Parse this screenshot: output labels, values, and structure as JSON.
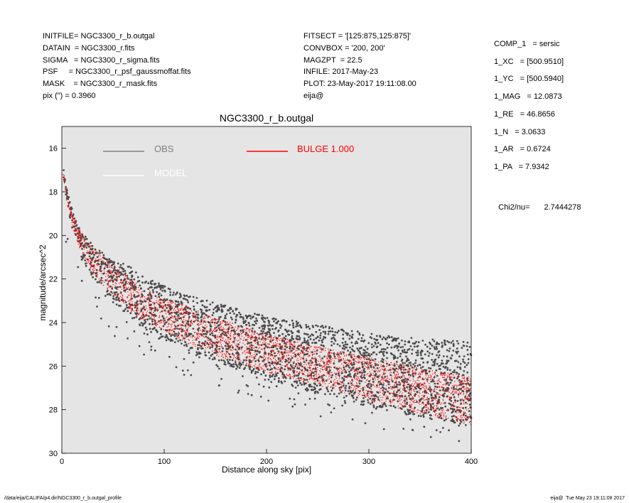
{
  "header_left": [
    {
      "key": "INITFILE=",
      "value": "NGC3300_r_b.outgal"
    },
    {
      "key": "DATAIN  =",
      "value": "NGC3300_r.fits"
    },
    {
      "key": "SIGMA   =",
      "value": "NGC3300_r_sigma.fits"
    },
    {
      "key": "PSF     =",
      "value": "NGC3300_r_psf_gaussmoffat.fits"
    },
    {
      "key": "MASK    =",
      "value": "NGC3300_r_mask.fits"
    },
    {
      "key": "pix (\") =",
      "value": "0.3960"
    }
  ],
  "header_mid": [
    {
      "key": "FITSECT =",
      "value": "'[125:875,125:875]'"
    },
    {
      "key": "CONVBOX =",
      "value": "'200, 200'"
    },
    {
      "key": "MAGZPT  =",
      "value": "22.5"
    },
    {
      "key": "INFILE:",
      "value": "2017-May-23"
    },
    {
      "key": "PLOT:",
      "value": "23-May-2017 19:11:08.00"
    },
    {
      "key": "eija@",
      "value": ""
    }
  ],
  "components": [
    {
      "key": "COMP_1",
      "value": "= sersic"
    },
    {
      "key": "1_XC",
      "value": "= [500.9510]"
    },
    {
      "key": "1_YC",
      "value": "= [500.5940]"
    },
    {
      "key": "1_MAG",
      "value": "= 12.0873"
    },
    {
      "key": "1_RE",
      "value": "= 46.8656"
    },
    {
      "key": "1_N",
      "value": "= 3.0633"
    },
    {
      "key": "1_AR",
      "value": "= 0.6724"
    },
    {
      "key": "1_PA",
      "value": "= 7.9342"
    }
  ],
  "chi2": {
    "label": "Chi2/nu=",
    "value": "2.7444278"
  },
  "footer": {
    "left": "/data/eija/CALIFA/p4.dir/NGC3300_r_b.outgal_profile",
    "right": "eija@  Tue May 23 19:11:08 2017"
  },
  "chart_data": {
    "type": "scatter",
    "title": "NGC3300_r_b.outgal",
    "xlabel": "Distance along sky [pix]",
    "ylabel": "magnitude/arcsec^2",
    "xlim": [
      0,
      400
    ],
    "ylim": [
      30,
      15
    ],
    "x_ticks": [
      0,
      100,
      200,
      300,
      400
    ],
    "y_ticks": [
      16,
      18,
      20,
      22,
      24,
      26,
      28,
      30
    ],
    "plot_background": "#e5e5e5",
    "legend": [
      {
        "name": "OBS",
        "color": "#808080"
      },
      {
        "name": "MODEL",
        "color": "#ffffff"
      },
      {
        "name": "BULGE  1.000",
        "color": "#ff0000"
      }
    ],
    "series": [
      {
        "name": "OBS",
        "color": "#4a4a4a",
        "x": [
          2,
          5,
          10,
          15,
          20,
          30,
          40,
          50,
          60,
          70,
          80,
          100,
          120,
          150,
          200,
          250,
          300,
          350,
          400
        ],
        "y": [
          17.2,
          18.2,
          19.2,
          19.9,
          20.4,
          21.0,
          21.5,
          21.9,
          22.2,
          22.5,
          22.9,
          23.4,
          23.8,
          24.3,
          25.0,
          25.6,
          26.1,
          26.5,
          26.9
        ],
        "spread_low": [
          0.2,
          0.3,
          0.5,
          0.6,
          0.7,
          0.9,
          1.0,
          1.2,
          1.3,
          1.4,
          1.4,
          1.4,
          1.4,
          1.5,
          1.6,
          1.7,
          1.8,
          1.8,
          1.9
        ],
        "spread_high": [
          0.2,
          0.3,
          0.4,
          0.4,
          0.5,
          0.6,
          0.7,
          0.8,
          0.9,
          1.0,
          1.0,
          1.1,
          1.1,
          1.2,
          1.3,
          1.5,
          1.6,
          1.8,
          2.0
        ]
      },
      {
        "name": "BULGE",
        "color": "#ff0000",
        "x": [
          2,
          5,
          10,
          15,
          20,
          30,
          40,
          50,
          60,
          70,
          80,
          100,
          120,
          150,
          200,
          250,
          300,
          350,
          400
        ],
        "y": [
          17.3,
          18.3,
          19.3,
          19.9,
          20.4,
          21.1,
          21.6,
          22.0,
          22.4,
          22.8,
          23.1,
          23.6,
          24.0,
          24.6,
          25.3,
          25.9,
          26.5,
          27.0,
          27.4
        ],
        "spread_low": [
          0.1,
          0.2,
          0.3,
          0.4,
          0.5,
          0.6,
          0.7,
          0.7,
          0.8,
          0.8,
          0.8,
          0.8,
          0.9,
          0.9,
          1.0,
          1.0,
          1.1,
          1.2,
          1.3
        ],
        "spread_high": [
          0.1,
          0.2,
          0.3,
          0.4,
          0.5,
          0.6,
          0.6,
          0.7,
          0.7,
          0.7,
          0.7,
          0.7,
          0.8,
          0.8,
          0.8,
          0.8,
          0.9,
          0.9,
          0.9
        ]
      }
    ]
  }
}
